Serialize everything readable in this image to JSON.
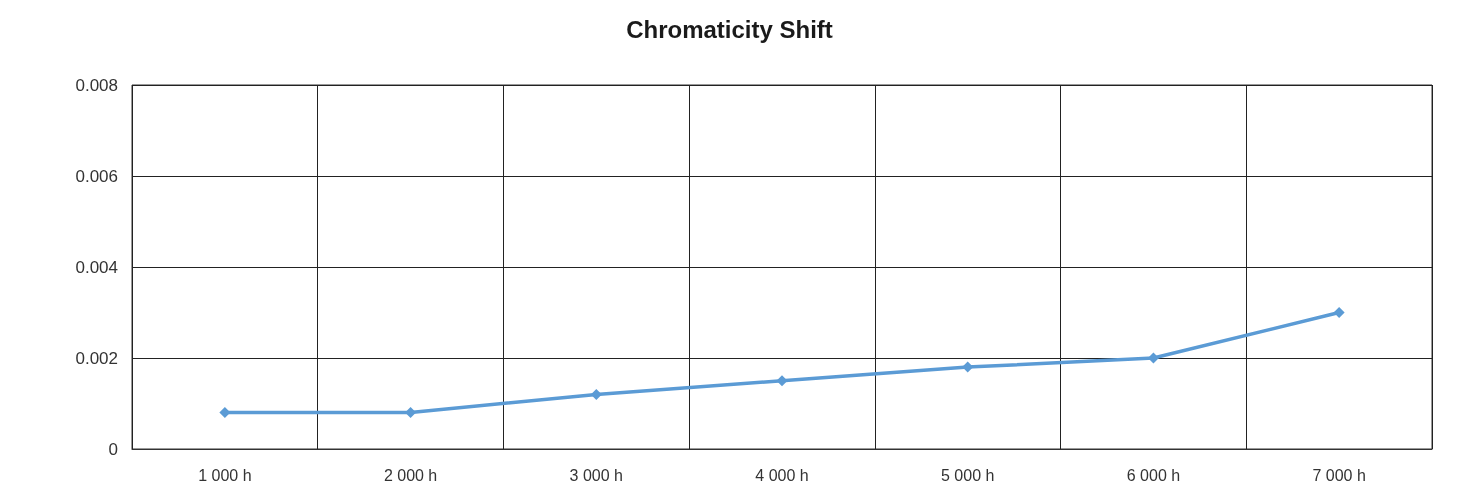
{
  "chart_data": {
    "type": "line",
    "title": "Chromaticity Shift",
    "categories": [
      "1 000 h",
      "2 000 h",
      "3 000 h",
      "4 000 h",
      "5 000 h",
      "6 000 h",
      "7 000 h"
    ],
    "series": [
      {
        "color": "#5b9bd5",
        "values": [
          0.0008,
          0.0008,
          0.0012,
          0.0015,
          0.0018,
          0.002,
          0.003
        ]
      }
    ],
    "ylim": [
      0,
      0.008
    ],
    "yticks": [
      0,
      0.002,
      0.004,
      0.006,
      0.008
    ],
    "grid": true,
    "marker": "diamond",
    "line_style": "solid"
  }
}
